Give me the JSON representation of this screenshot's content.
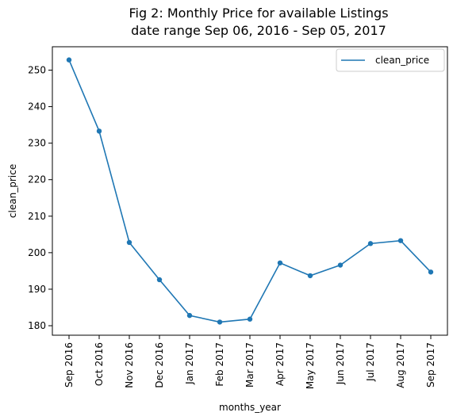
{
  "chart_data": {
    "type": "line",
    "title": "Fig 2: Monthly Price for available Listings",
    "subtitle": "date range Sep 06, 2016 - Sep 05, 2017",
    "xlabel": "months_year",
    "ylabel": "clean_price",
    "categories": [
      "Sep 2016",
      "Oct 2016",
      "Nov 2016",
      "Dec 2016",
      "Jan 2017",
      "Feb 2017",
      "Mar 2017",
      "Apr 2017",
      "May 2017",
      "Jun 2017",
      "Jul 2017",
      "Aug 2017",
      "Sep 2017"
    ],
    "series": [
      {
        "name": "clean_price",
        "values": [
          252.8,
          233.3,
          202.8,
          192.6,
          182.8,
          181.0,
          181.8,
          197.2,
          193.7,
          196.6,
          202.5,
          203.3,
          194.7
        ],
        "color": "#1f77b4",
        "marker": "circle"
      }
    ],
    "ylim": [
      177.4,
      256.4
    ],
    "yticks": [
      "180",
      "190",
      "200",
      "210",
      "220",
      "230",
      "240",
      "250"
    ],
    "legend": "top-right",
    "grid": false
  }
}
